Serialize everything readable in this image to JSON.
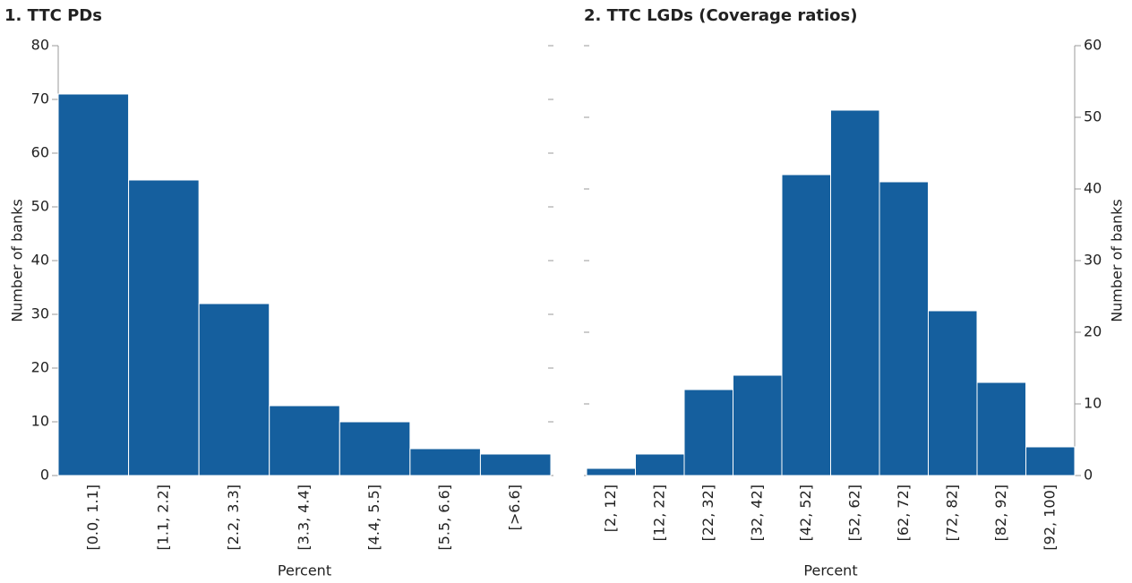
{
  "chart_data": [
    {
      "type": "bar",
      "title": "1. TTC PDs",
      "x_label": "Percent",
      "y_label": "Number of banks",
      "categories": [
        "[0.0, 1.1]",
        "[1.1, 2.2]",
        "[2.2, 3.3]",
        "[3.3, 4.4]",
        "[4.4, 5.5]",
        "[5.5, 6.6]",
        "[>6.6]"
      ],
      "values": [
        71,
        55,
        32,
        13,
        10,
        5,
        4
      ],
      "color": "#155f9e",
      "ylim": [
        0,
        80
      ],
      "yticks": [
        0,
        10,
        20,
        30,
        40,
        50,
        60,
        70,
        80
      ],
      "y_axis_side": "left"
    },
    {
      "type": "bar",
      "title": "2. TTC LGDs (Coverage ratios)",
      "x_label": "Percent",
      "y_label": "Number of banks",
      "categories": [
        "[2, 12]",
        "[12, 22]",
        "[22, 32]",
        "[32, 42]",
        "[42, 52]",
        "[52, 62]",
        "[62, 72]",
        "[72, 82]",
        "[82, 92]",
        "[92, 100]"
      ],
      "values": [
        1,
        3,
        12,
        14,
        42,
        51,
        41,
        23,
        13,
        4
      ],
      "color": "#155f9e",
      "ylim": [
        0,
        60
      ],
      "yticks": [
        0,
        10,
        20,
        30,
        40,
        50,
        60
      ],
      "y_axis_side": "right"
    }
  ]
}
